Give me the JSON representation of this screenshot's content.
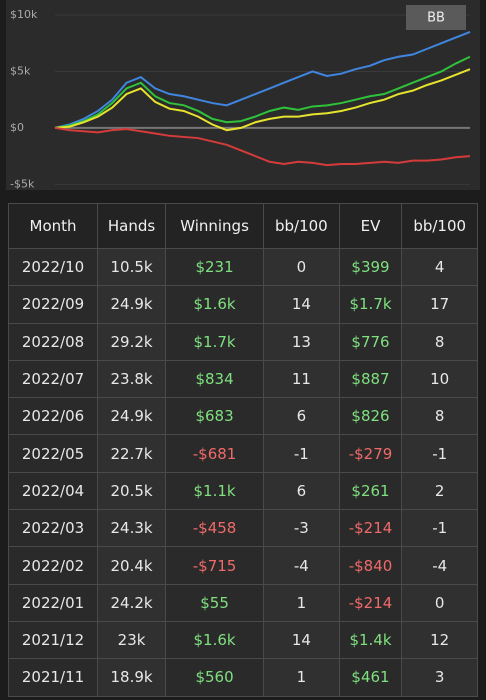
{
  "chart_data": {
    "type": "line",
    "button": "BB",
    "ylim": [
      -5500,
      10000
    ],
    "yticks": [
      {
        "value": 10000,
        "label": "$10k"
      },
      {
        "value": 5000,
        "label": "$5k"
      },
      {
        "value": 0,
        "label": "$0"
      },
      {
        "value": -5000,
        "label": "-$5k"
      }
    ],
    "grid": true,
    "series": [
      {
        "color": "#3f86e0",
        "values": [
          0,
          300,
          800,
          1500,
          2500,
          4000,
          4500,
          3500,
          3000,
          2800,
          2500,
          2200,
          2000,
          2500,
          3000,
          3500,
          4000,
          4500,
          5000,
          4600,
          4800,
          5200,
          5500,
          6000,
          6300,
          6500,
          7000,
          7500,
          8000,
          8500
        ]
      },
      {
        "color": "#2fc23a",
        "values": [
          0,
          200,
          600,
          1200,
          2200,
          3500,
          4000,
          2800,
          2200,
          2000,
          1500,
          800,
          500,
          600,
          1000,
          1500,
          1800,
          1600,
          1900,
          2000,
          2200,
          2500,
          2800,
          3000,
          3500,
          4000,
          4500,
          5000,
          5700,
          6300
        ]
      },
      {
        "color": "#e6e22e",
        "values": [
          0,
          100,
          500,
          1000,
          1800,
          3000,
          3500,
          2300,
          1700,
          1500,
          1000,
          300,
          -200,
          0,
          500,
          800,
          1000,
          1000,
          1200,
          1300,
          1500,
          1800,
          2200,
          2500,
          3000,
          3300,
          3800,
          4200,
          4700,
          5200
        ]
      },
      {
        "color": "#d63b3b",
        "values": [
          0,
          -200,
          -300,
          -400,
          -200,
          -100,
          -300,
          -500,
          -700,
          -800,
          -900,
          -1200,
          -1500,
          -2000,
          -2500,
          -3000,
          -3200,
          -3000,
          -3100,
          -3300,
          -3200,
          -3200,
          -3100,
          -3000,
          -3100,
          -2900,
          -2900,
          -2800,
          -2600,
          -2500
        ]
      }
    ]
  },
  "table": {
    "header": [
      "Month",
      "Hands",
      "Winnings",
      "bb/100",
      "EV",
      "bb/100"
    ],
    "rows": [
      [
        "2022/10",
        "10.5k",
        "$231",
        "0",
        "$399",
        "4"
      ],
      [
        "2022/09",
        "24.9k",
        "$1.6k",
        "14",
        "$1.7k",
        "17"
      ],
      [
        "2022/08",
        "29.2k",
        "$1.7k",
        "13",
        "$776",
        "8"
      ],
      [
        "2022/07",
        "23.8k",
        "$834",
        "11",
        "$887",
        "10"
      ],
      [
        "2022/06",
        "24.9k",
        "$683",
        "6",
        "$826",
        "8"
      ],
      [
        "2022/05",
        "22.7k",
        "-$681",
        "-1",
        "-$279",
        "-1"
      ],
      [
        "2022/04",
        "20.5k",
        "$1.1k",
        "6",
        "$261",
        "2"
      ],
      [
        "2022/03",
        "24.3k",
        "-$458",
        "-3",
        "-$214",
        "-1"
      ],
      [
        "2022/02",
        "20.4k",
        "-$715",
        "-4",
        "-$840",
        "-4"
      ],
      [
        "2022/01",
        "24.2k",
        "$55",
        "1",
        "-$214",
        "0"
      ],
      [
        "2021/12",
        "23k",
        "$1.6k",
        "14",
        "$1.4k",
        "12"
      ],
      [
        "2021/11",
        "18.9k",
        "$560",
        "1",
        "$461",
        "3"
      ]
    ]
  }
}
